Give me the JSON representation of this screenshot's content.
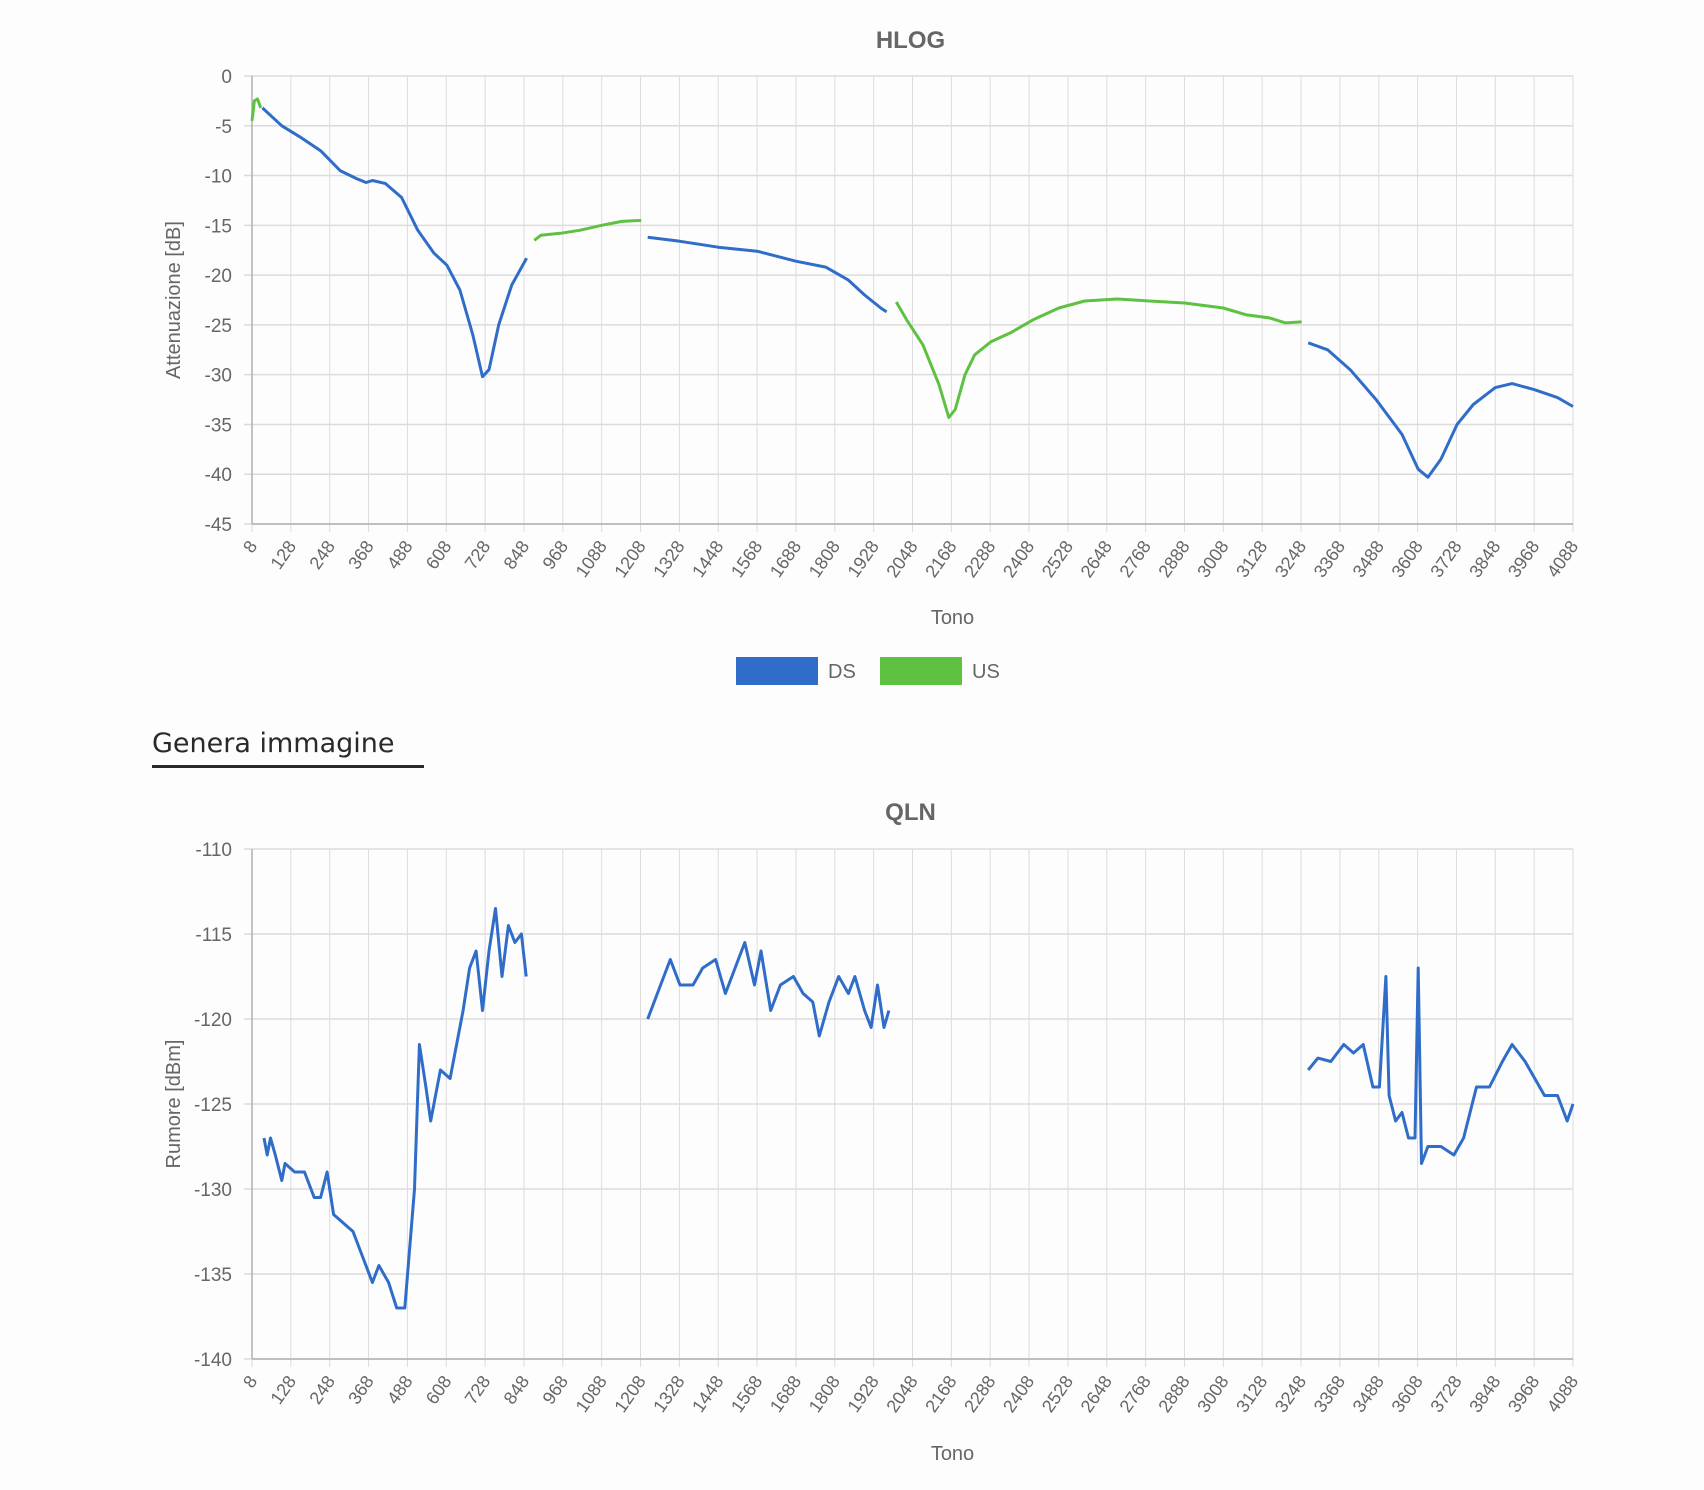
{
  "colors": {
    "ds": "#2f6dc9",
    "us": "#5dc142",
    "grid": "#dcdcdc",
    "axis": "#b0b0b0",
    "text": "#666666",
    "title": "#666666"
  },
  "generate_image_label": "Genera immagine",
  "chart_data": [
    {
      "type": "line",
      "title": "HLOG",
      "xlabel": "Tono",
      "ylabel": "Attenuazione [dB]",
      "xlim": [
        8,
        4088
      ],
      "ylim": [
        -45,
        0
      ],
      "yticks": [
        0,
        -5,
        -10,
        -15,
        -20,
        -25,
        -30,
        -35,
        -40,
        -45
      ],
      "xticks": [
        8,
        128,
        248,
        368,
        488,
        608,
        728,
        848,
        968,
        1088,
        1208,
        1328,
        1448,
        1568,
        1688,
        1808,
        1928,
        2048,
        2168,
        2288,
        2408,
        2528,
        2648,
        2768,
        2888,
        3008,
        3128,
        3248,
        3368,
        3488,
        3608,
        3728,
        3848,
        3968,
        4088
      ],
      "grid": true,
      "legend": {
        "position": "bottom",
        "entries": [
          "DS",
          "US"
        ]
      },
      "series": [
        {
          "name": "DS",
          "segments": [
            [
              [
                40,
                -3.2
              ],
              [
                100,
                -5
              ],
              [
                160,
                -6.2
              ],
              [
                220,
                -7.5
              ],
              [
                280,
                -9.5
              ],
              [
                330,
                -10.3
              ],
              [
                360,
                -10.7
              ],
              [
                380,
                -10.5
              ],
              [
                420,
                -10.8
              ],
              [
                470,
                -12.2
              ],
              [
                520,
                -15.5
              ],
              [
                570,
                -17.8
              ],
              [
                610,
                -19
              ],
              [
                650,
                -21.5
              ],
              [
                690,
                -26
              ],
              [
                720,
                -30.2
              ],
              [
                740,
                -29.5
              ],
              [
                770,
                -25
              ],
              [
                810,
                -21
              ],
              [
                856,
                -18.3
              ]
            ],
            [
              [
                1230,
                -16.2
              ],
              [
                1330,
                -16.6
              ],
              [
                1448,
                -17.2
              ],
              [
                1568,
                -17.6
              ],
              [
                1688,
                -18.6
              ],
              [
                1780,
                -19.2
              ],
              [
                1850,
                -20.5
              ],
              [
                1900,
                -22
              ],
              [
                1950,
                -23.3
              ],
              [
                1968,
                -23.7
              ]
            ],
            [
              [
                3270,
                -26.8
              ],
              [
                3330,
                -27.5
              ],
              [
                3400,
                -29.5
              ],
              [
                3480,
                -32.5
              ],
              [
                3560,
                -36
              ],
              [
                3610,
                -39.5
              ],
              [
                3640,
                -40.3
              ],
              [
                3680,
                -38.5
              ],
              [
                3730,
                -35
              ],
              [
                3780,
                -33
              ],
              [
                3848,
                -31.3
              ],
              [
                3900,
                -30.9
              ],
              [
                3968,
                -31.5
              ],
              [
                4040,
                -32.3
              ],
              [
                4088,
                -33.2
              ]
            ]
          ]
        },
        {
          "name": "US",
          "segments": [
            [
              [
                8,
                -4.5
              ],
              [
                15,
                -2.5
              ],
              [
                25,
                -2.3
              ],
              [
                35,
                -3.2
              ]
            ],
            [
              [
                880,
                -16.5
              ],
              [
                900,
                -16
              ],
              [
                960,
                -15.8
              ],
              [
                1020,
                -15.5
              ],
              [
                1088,
                -15
              ],
              [
                1150,
                -14.6
              ],
              [
                1210,
                -14.5
              ]
            ],
            [
              [
                1998,
                -22.7
              ],
              [
                2030,
                -24.5
              ],
              [
                2080,
                -27
              ],
              [
                2130,
                -31
              ],
              [
                2160,
                -34.3
              ],
              [
                2180,
                -33.5
              ],
              [
                2210,
                -30
              ],
              [
                2240,
                -28
              ],
              [
                2290,
                -26.7
              ],
              [
                2350,
                -25.8
              ],
              [
                2420,
                -24.5
              ],
              [
                2500,
                -23.3
              ],
              [
                2580,
                -22.6
              ],
              [
                2680,
                -22.4
              ],
              [
                2780,
                -22.6
              ],
              [
                2888,
                -22.8
              ],
              [
                3008,
                -23.3
              ],
              [
                3080,
                -24
              ],
              [
                3150,
                -24.3
              ],
              [
                3200,
                -24.8
              ],
              [
                3250,
                -24.7
              ]
            ]
          ]
        }
      ]
    },
    {
      "type": "line",
      "title": "QLN",
      "xlabel": "Tono",
      "ylabel": "Rumore [dBm]",
      "xlim": [
        8,
        4088
      ],
      "ylim": [
        -140,
        -110
      ],
      "yticks": [
        -110,
        -115,
        -120,
        -125,
        -130,
        -135,
        -140
      ],
      "xticks": [
        8,
        128,
        248,
        368,
        488,
        608,
        728,
        848,
        968,
        1088,
        1208,
        1328,
        1448,
        1568,
        1688,
        1808,
        1928,
        2048,
        2168,
        2288,
        2408,
        2528,
        2648,
        2768,
        2888,
        3008,
        3128,
        3248,
        3368,
        3488,
        3608,
        3728,
        3848,
        3968,
        4088
      ],
      "grid": true,
      "series": [
        {
          "name": "DS",
          "segments": [
            [
              [
                45,
                -127
              ],
              [
                55,
                -128
              ],
              [
                65,
                -127
              ],
              [
                80,
                -128
              ],
              [
                100,
                -129.5
              ],
              [
                110,
                -128.5
              ],
              [
                140,
                -129
              ],
              [
                170,
                -129
              ],
              [
                200,
                -130.5
              ],
              [
                220,
                -130.5
              ],
              [
                240,
                -129
              ],
              [
                260,
                -131.5
              ],
              [
                290,
                -132
              ],
              [
                320,
                -132.5
              ],
              [
                350,
                -134
              ],
              [
                380,
                -135.5
              ],
              [
                400,
                -134.5
              ],
              [
                430,
                -135.5
              ],
              [
                455,
                -137
              ],
              [
                480,
                -137
              ],
              [
                510,
                -130
              ],
              [
                525,
                -121.5
              ],
              [
                545,
                -124
              ],
              [
                560,
                -126
              ],
              [
                590,
                -123
              ],
              [
                620,
                -123.5
              ],
              [
                660,
                -119.5
              ],
              [
                680,
                -117
              ],
              [
                700,
                -116
              ],
              [
                720,
                -119.5
              ],
              [
                740,
                -116
              ],
              [
                760,
                -113.5
              ],
              [
                780,
                -117.5
              ],
              [
                800,
                -114.5
              ],
              [
                820,
                -115.5
              ],
              [
                840,
                -115
              ],
              [
                855,
                -117.5
              ]
            ],
            [
              [
                1230,
                -120
              ],
              [
                1270,
                -118
              ],
              [
                1300,
                -116.5
              ],
              [
                1330,
                -118
              ],
              [
                1370,
                -118
              ],
              [
                1400,
                -117
              ],
              [
                1440,
                -116.5
              ],
              [
                1470,
                -118.5
              ],
              [
                1500,
                -117
              ],
              [
                1530,
                -115.5
              ],
              [
                1560,
                -118
              ],
              [
                1580,
                -116
              ],
              [
                1610,
                -119.5
              ],
              [
                1640,
                -118
              ],
              [
                1680,
                -117.5
              ],
              [
                1710,
                -118.5
              ],
              [
                1740,
                -119
              ],
              [
                1760,
                -121
              ],
              [
                1790,
                -119
              ],
              [
                1820,
                -117.5
              ],
              [
                1850,
                -118.5
              ],
              [
                1870,
                -117.5
              ],
              [
                1900,
                -119.5
              ],
              [
                1920,
                -120.5
              ],
              [
                1940,
                -118
              ],
              [
                1960,
                -120.5
              ],
              [
                1975,
                -119.5
              ]
            ],
            [
              [
                3270,
                -123
              ],
              [
                3300,
                -122.3
              ],
              [
                3340,
                -122.5
              ],
              [
                3380,
                -121.5
              ],
              [
                3410,
                -122
              ],
              [
                3440,
                -121.5
              ],
              [
                3470,
                -124
              ],
              [
                3490,
                -124
              ],
              [
                3510,
                -117.5
              ],
              [
                3520,
                -124.5
              ],
              [
                3540,
                -126
              ],
              [
                3560,
                -125.5
              ],
              [
                3580,
                -127
              ],
              [
                3600,
                -127
              ],
              [
                3610,
                -117
              ],
              [
                3620,
                -128.5
              ],
              [
                3640,
                -127.5
              ],
              [
                3680,
                -127.5
              ],
              [
                3720,
                -128
              ],
              [
                3750,
                -127
              ],
              [
                3790,
                -124
              ],
              [
                3830,
                -124
              ],
              [
                3870,
                -122.5
              ],
              [
                3900,
                -121.5
              ],
              [
                3940,
                -122.5
              ],
              [
                3970,
                -123.5
              ],
              [
                4000,
                -124.5
              ],
              [
                4040,
                -124.5
              ],
              [
                4070,
                -126
              ],
              [
                4088,
                -125
              ]
            ]
          ]
        }
      ]
    }
  ]
}
